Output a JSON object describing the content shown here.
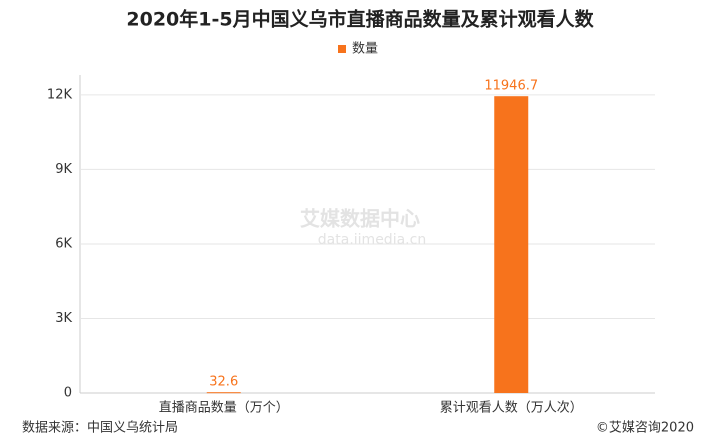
{
  "chart_data": {
    "type": "bar",
    "title": "2020年1-5月中国义乌市直播商品数量及累计观看人数",
    "categories": [
      "直播商品数量（万个）",
      "累计观看人数（万人次）"
    ],
    "series": [
      {
        "name": "数量",
        "color": "#f7731c",
        "values": [
          32.6,
          11946.7
        ]
      }
    ],
    "ylim": [
      0,
      12800
    ],
    "yticks": [
      0,
      {
        "value": 3000,
        "label": "3K"
      },
      {
        "value": 6000,
        "label": "6K"
      },
      {
        "value": 9000,
        "label": "9K"
      },
      {
        "value": 12000,
        "label": "12K"
      }
    ],
    "grid": true,
    "legend": "top",
    "source": "数据来源：中国义乌统计局",
    "copyright": "©艾媒咨询2020",
    "watermark": [
      "艾媒数据中心",
      "data.iimedia.cn"
    ]
  }
}
